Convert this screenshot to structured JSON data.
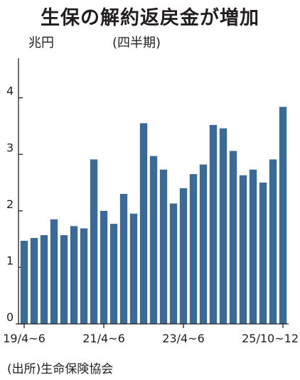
{
  "title": "生保の解約返戻金が増加",
  "unit_label": "兆円",
  "period_label": "(四半期)",
  "source": "(出所)生命保険協会",
  "colors": {
    "bar": "#3a6a99",
    "axis": "#231f20"
  },
  "chart_data": {
    "type": "bar",
    "title": "生保の解約返戻金が増加",
    "ylabel": "兆円",
    "ylim": [
      0,
      4.7
    ],
    "yticks": [
      0,
      1,
      2,
      3,
      4
    ],
    "grid": false,
    "categories": [
      "19/4~6",
      "19/7~9",
      "19/10~12",
      "20/1~3",
      "20/4~6",
      "20/7~9",
      "20/10~12",
      "21/1~3",
      "21/4~6",
      "21/7~9",
      "21/10~12",
      "22/1~3",
      "22/4~6",
      "22/7~9",
      "22/10~12",
      "23/1~3",
      "23/4~6",
      "23/7~9",
      "23/10~12",
      "24/1~3",
      "24/4~6",
      "24/7~9",
      "24/10~12",
      "25/1~3",
      "25/4~6",
      "25/7~9",
      "25/10~12"
    ],
    "x_tick_labels": [
      {
        "index": 0,
        "text": "19/4~6"
      },
      {
        "index": 8,
        "text": "21/4~6"
      },
      {
        "index": 16,
        "text": "23/4~6"
      },
      {
        "index": 26,
        "text": "25/10~12"
      }
    ],
    "values": [
      1.47,
      1.52,
      1.57,
      1.85,
      1.57,
      1.73,
      1.69,
      2.91,
      2.0,
      1.77,
      2.3,
      1.95,
      3.55,
      2.97,
      2.73,
      2.13,
      2.4,
      2.65,
      2.82,
      3.52,
      3.46,
      3.06,
      2.63,
      2.73,
      2.5,
      2.91,
      3.84
    ]
  }
}
